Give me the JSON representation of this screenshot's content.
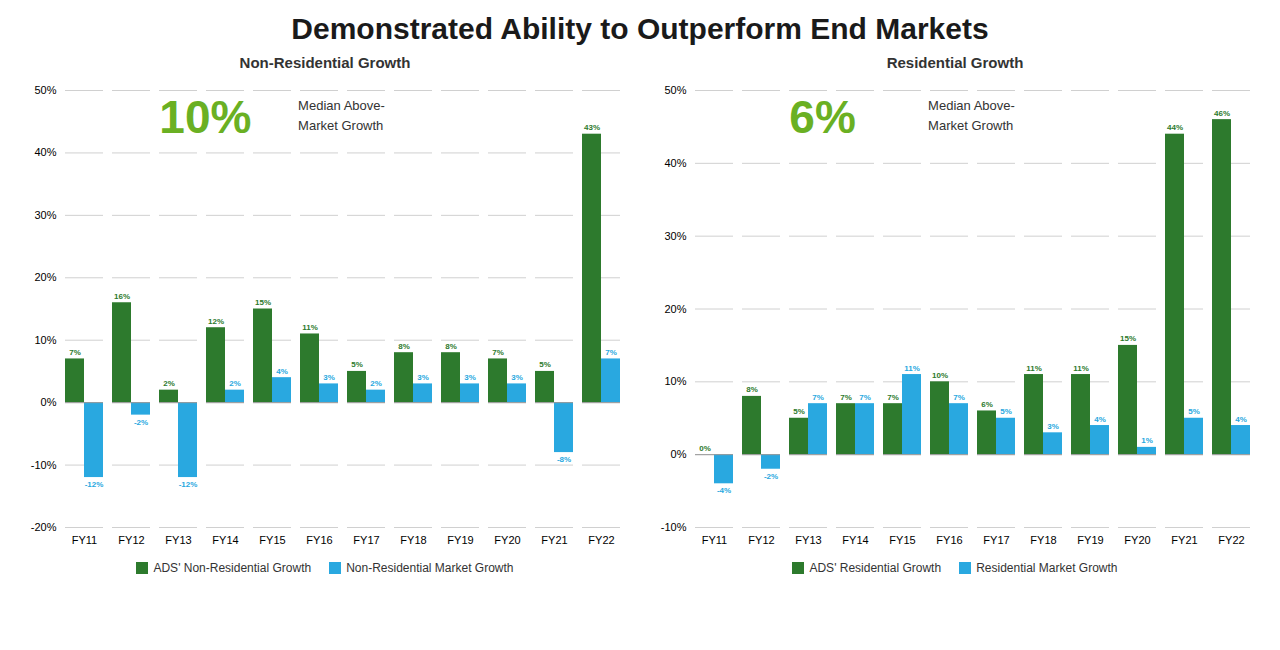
{
  "title": "Demonstrated Ability to Outperform End Markets",
  "chart_data": [
    {
      "type": "bar",
      "title": "Non-Residential Growth",
      "categories": [
        "FY11",
        "FY12",
        "FY13",
        "FY14",
        "FY15",
        "FY16",
        "FY17",
        "FY18",
        "FY19",
        "FY20",
        "FY21",
        "FY22"
      ],
      "series": [
        {
          "name": "ADS' Non-Residential Growth",
          "color": "#2d7a2d",
          "values": [
            7,
            16,
            2,
            12,
            15,
            11,
            5,
            8,
            8,
            7,
            5,
            43
          ],
          "value_labels": [
            "7%",
            "16%",
            "2%",
            "12%",
            "15%",
            "11%",
            "5%",
            "8%",
            "8%",
            "7%",
            "5%",
            "43%"
          ]
        },
        {
          "name": "Non-Residential Market Growth",
          "color": "#29a8e0",
          "values": [
            -12,
            -2,
            -12,
            2,
            4,
            3,
            2,
            3,
            3,
            3,
            -8,
            7
          ],
          "value_labels": [
            "-12%",
            "-2%",
            "-12%",
            "2%",
            "4%",
            "3%",
            "2%",
            "3%",
            "3%",
            "3%",
            "-8%",
            "7%"
          ]
        }
      ],
      "ylim": [
        -20,
        50
      ],
      "yticks": [
        {
          "value": -20,
          "label": "-20%"
        },
        {
          "value": -10,
          "label": "-10%"
        },
        {
          "value": 0,
          "label": "0%"
        },
        {
          "value": 10,
          "label": "10%"
        },
        {
          "value": 20,
          "label": "20%"
        },
        {
          "value": 30,
          "label": "30%"
        },
        {
          "value": 40,
          "label": "40%"
        },
        {
          "value": 50,
          "label": "50%"
        }
      ],
      "grid": true,
      "legend": "bottom",
      "data_labels": true,
      "annotations": [
        {
          "text": "10%",
          "color": "#6ab023"
        },
        {
          "text": "Median Above-\nMarket Growth"
        }
      ]
    },
    {
      "type": "bar",
      "title": "Residential Growth",
      "categories": [
        "FY11",
        "FY12",
        "FY13",
        "FY14",
        "FY15",
        "FY16",
        "FY17",
        "FY18",
        "FY19",
        "FY20",
        "FY21",
        "FY22"
      ],
      "series": [
        {
          "name": "ADS' Residential Growth",
          "color": "#2d7a2d",
          "values": [
            0,
            8,
            5,
            7,
            7,
            10,
            6,
            11,
            11,
            15,
            44,
            46
          ],
          "value_labels": [
            "0%",
            "8%",
            "5%",
            "7%",
            "7%",
            "10%",
            "6%",
            "11%",
            "11%",
            "15%",
            "44%",
            "46%"
          ]
        },
        {
          "name": "Residential Market Growth",
          "color": "#29a8e0",
          "values": [
            -4,
            -2,
            7,
            7,
            11,
            7,
            5,
            3,
            4,
            1,
            5,
            4
          ],
          "value_labels": [
            "-4%",
            "-2%",
            "7%",
            "7%",
            "11%",
            "7%",
            "5%",
            "3%",
            "4%",
            "1%",
            "5%",
            "4%"
          ]
        }
      ],
      "ylim": [
        -10,
        50
      ],
      "yticks": [
        {
          "value": -10,
          "label": "-10%"
        },
        {
          "value": 0,
          "label": "0%"
        },
        {
          "value": 10,
          "label": "10%"
        },
        {
          "value": 20,
          "label": "20%"
        },
        {
          "value": 30,
          "label": "30%"
        },
        {
          "value": 40,
          "label": "40%"
        },
        {
          "value": 50,
          "label": "50%"
        }
      ],
      "grid": true,
      "legend": "bottom",
      "data_labels": true,
      "annotations": [
        {
          "text": "6%",
          "color": "#6ab023"
        },
        {
          "text": "Median Above-\nMarket Growth"
        }
      ]
    }
  ]
}
